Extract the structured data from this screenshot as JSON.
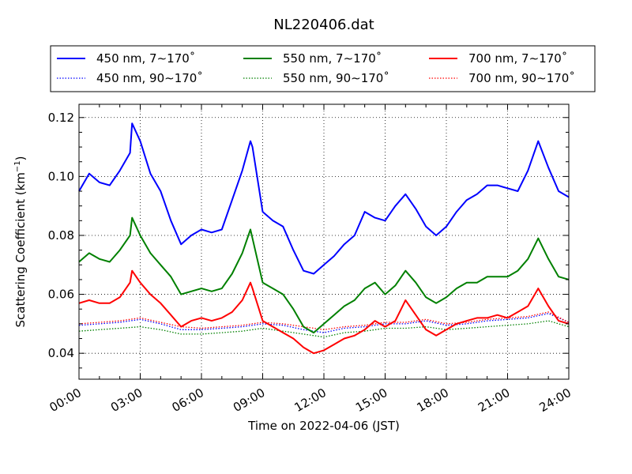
{
  "chart_data": {
    "type": "line",
    "title": "NL220406.dat",
    "xlabel": "Time on 2022-04-06 (JST)",
    "ylabel": "Scattering Coefficient (km",
    "ylabel_sup": "−1",
    "ylabel_close": ")",
    "x_unit": "hours",
    "xlim": [
      0,
      24
    ],
    "ylim": [
      0.0312,
      0.1245
    ],
    "x_ticks": [
      0,
      3,
      6,
      9,
      12,
      15,
      18,
      21,
      24
    ],
    "x_tick_labels": [
      "00:00",
      "03:00",
      "06:00",
      "09:00",
      "12:00",
      "15:00",
      "18:00",
      "21:00",
      "24:00"
    ],
    "y_ticks": [
      0.04,
      0.06,
      0.08,
      0.1,
      0.12
    ],
    "y_tick_labels": [
      "0.04",
      "0.06",
      "0.08",
      "0.10",
      "0.12"
    ],
    "grid": true,
    "legend_position": "top, above plot, 3 columns",
    "series": [
      {
        "name": "450 nm, 7∼170˚",
        "color": "#0000ff",
        "style": "solid",
        "x": [
          0,
          0.5,
          1.0,
          1.5,
          2.0,
          2.5,
          2.6,
          3.0,
          3.5,
          4.0,
          4.5,
          5.0,
          5.5,
          6.0,
          6.5,
          7.0,
          7.5,
          8.0,
          8.4,
          8.5,
          9.0,
          9.5,
          10.0,
          10.5,
          11.0,
          11.5,
          12.0,
          12.5,
          13.0,
          13.5,
          14.0,
          14.5,
          15.0,
          15.5,
          16.0,
          16.5,
          17.0,
          17.5,
          18.0,
          18.5,
          19.0,
          19.5,
          20.0,
          20.5,
          21.0,
          21.5,
          22.0,
          22.5,
          23.0,
          23.5,
          24.0
        ],
        "y": [
          0.095,
          0.101,
          0.098,
          0.097,
          0.102,
          0.108,
          0.118,
          0.112,
          0.101,
          0.095,
          0.085,
          0.077,
          0.08,
          0.082,
          0.081,
          0.082,
          0.092,
          0.102,
          0.112,
          0.11,
          0.088,
          0.085,
          0.083,
          0.075,
          0.068,
          0.067,
          0.07,
          0.073,
          0.077,
          0.08,
          0.088,
          0.086,
          0.085,
          0.09,
          0.094,
          0.089,
          0.083,
          0.08,
          0.083,
          0.088,
          0.092,
          0.094,
          0.097,
          0.097,
          0.096,
          0.095,
          0.102,
          0.112,
          0.103,
          0.095,
          0.093
        ]
      },
      {
        "name": "450 nm, 90∼170˚",
        "color": "#0000ff",
        "style": "dotted",
        "x": [
          0,
          1,
          2,
          3,
          4,
          5,
          6,
          7,
          8,
          9,
          10,
          11,
          12,
          13,
          14,
          15,
          16,
          17,
          18,
          19,
          20,
          21,
          22,
          23,
          24
        ],
        "y": [
          0.0495,
          0.05,
          0.0505,
          0.0515,
          0.05,
          0.048,
          0.048,
          0.0485,
          0.049,
          0.05,
          0.0495,
          0.048,
          0.047,
          0.0485,
          0.049,
          0.05,
          0.05,
          0.051,
          0.0495,
          0.05,
          0.051,
          0.0515,
          0.052,
          0.0535,
          0.0505
        ]
      },
      {
        "name": "550 nm, 7∼170˚",
        "color": "#008000",
        "style": "solid",
        "x": [
          0,
          0.5,
          1.0,
          1.5,
          2.0,
          2.5,
          2.6,
          3.0,
          3.5,
          4.0,
          4.5,
          5.0,
          5.5,
          6.0,
          6.5,
          7.0,
          7.5,
          8.0,
          8.4,
          8.5,
          9.0,
          9.5,
          10.0,
          10.5,
          11.0,
          11.5,
          12.0,
          12.5,
          13.0,
          13.5,
          14.0,
          14.5,
          15.0,
          15.5,
          16.0,
          16.5,
          17.0,
          17.5,
          18.0,
          18.5,
          19.0,
          19.5,
          20.0,
          20.5,
          21.0,
          21.5,
          22.0,
          22.5,
          23.0,
          23.5,
          24.0
        ],
        "y": [
          0.071,
          0.074,
          0.072,
          0.071,
          0.075,
          0.08,
          0.086,
          0.08,
          0.074,
          0.07,
          0.066,
          0.06,
          0.061,
          0.062,
          0.061,
          0.062,
          0.067,
          0.074,
          0.082,
          0.079,
          0.064,
          0.062,
          0.06,
          0.055,
          0.049,
          0.047,
          0.05,
          0.053,
          0.056,
          0.058,
          0.062,
          0.064,
          0.06,
          0.063,
          0.068,
          0.064,
          0.059,
          0.057,
          0.059,
          0.062,
          0.064,
          0.064,
          0.066,
          0.066,
          0.066,
          0.068,
          0.072,
          0.079,
          0.072,
          0.066,
          0.065
        ]
      },
      {
        "name": "550 nm, 90∼170˚",
        "color": "#008000",
        "style": "dotted",
        "x": [
          0,
          1,
          2,
          3,
          4,
          5,
          6,
          7,
          8,
          9,
          10,
          11,
          12,
          13,
          14,
          15,
          16,
          17,
          18,
          19,
          20,
          21,
          22,
          23,
          24
        ],
        "y": [
          0.0475,
          0.048,
          0.0485,
          0.049,
          0.048,
          0.0465,
          0.0465,
          0.047,
          0.0475,
          0.0485,
          0.0475,
          0.0465,
          0.0455,
          0.047,
          0.0475,
          0.0485,
          0.0485,
          0.049,
          0.048,
          0.0485,
          0.049,
          0.0495,
          0.05,
          0.051,
          0.049
        ]
      },
      {
        "name": "700 nm, 7∼170˚",
        "color": "#ff0000",
        "style": "solid",
        "x": [
          0,
          0.5,
          1.0,
          1.5,
          2.0,
          2.5,
          2.6,
          3.0,
          3.5,
          4.0,
          4.5,
          5.0,
          5.5,
          6.0,
          6.5,
          7.0,
          7.5,
          8.0,
          8.4,
          8.5,
          9.0,
          9.5,
          10.0,
          10.5,
          11.0,
          11.5,
          12.0,
          12.5,
          13.0,
          13.5,
          14.0,
          14.5,
          15.0,
          15.5,
          16.0,
          16.5,
          17.0,
          17.5,
          18.0,
          18.5,
          19.0,
          19.5,
          20.0,
          20.5,
          21.0,
          21.5,
          22.0,
          22.5,
          23.0,
          23.5,
          24.0
        ],
        "y": [
          0.057,
          0.058,
          0.057,
          0.057,
          0.059,
          0.064,
          0.068,
          0.064,
          0.06,
          0.057,
          0.053,
          0.049,
          0.051,
          0.052,
          0.051,
          0.052,
          0.054,
          0.058,
          0.064,
          0.062,
          0.051,
          0.049,
          0.047,
          0.045,
          0.042,
          0.04,
          0.041,
          0.043,
          0.045,
          0.046,
          0.048,
          0.051,
          0.049,
          0.051,
          0.058,
          0.053,
          0.048,
          0.046,
          0.048,
          0.05,
          0.051,
          0.052,
          0.052,
          0.053,
          0.052,
          0.054,
          0.056,
          0.062,
          0.056,
          0.051,
          0.05
        ]
      },
      {
        "name": "700 nm, 90∼170˚",
        "color": "#ff0000",
        "style": "dotted",
        "x": [
          0,
          1,
          2,
          3,
          4,
          5,
          6,
          7,
          8,
          9,
          10,
          11,
          12,
          13,
          14,
          15,
          16,
          17,
          18,
          19,
          20,
          21,
          22,
          23,
          24
        ],
        "y": [
          0.05,
          0.0505,
          0.051,
          0.052,
          0.0505,
          0.049,
          0.0485,
          0.049,
          0.0495,
          0.0505,
          0.05,
          0.049,
          0.048,
          0.049,
          0.0495,
          0.0505,
          0.0505,
          0.0515,
          0.05,
          0.0505,
          0.0515,
          0.052,
          0.0525,
          0.054,
          0.0505
        ]
      }
    ]
  }
}
